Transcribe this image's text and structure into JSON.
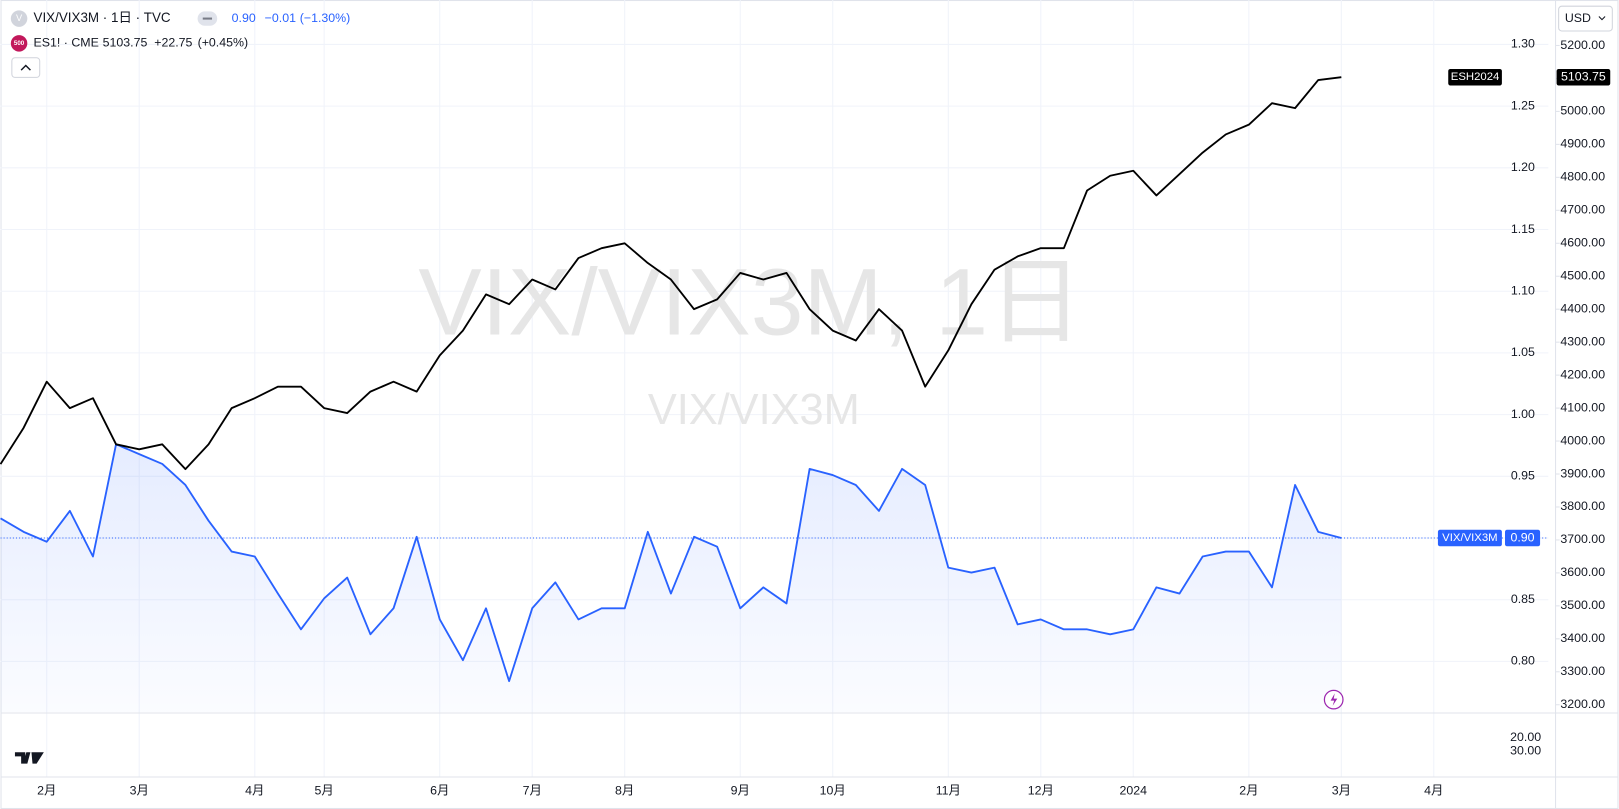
{
  "header": {
    "icon": "V",
    "symbol": "VIX/VIX3M · 1日 · TVC",
    "last": "0.90",
    "change": "−0.01",
    "change_pct": "(−1.30%)",
    "icon2": "500",
    "symbol2": "ES1! · CME",
    "last2": "5103.75",
    "change2": "+22.75",
    "change_pct2": "(+0.45%)",
    "currency": "USD",
    "watermark": "VIX/VIX3M, 1日",
    "watermark_sub": "VIX/VIX3M"
  },
  "chart_data": {
    "type": "line",
    "categories": [
      null,
      null,
      "2月",
      null,
      null,
      null,
      "3月",
      null,
      null,
      null,
      null,
      "4月",
      null,
      null,
      "5月",
      null,
      null,
      null,
      null,
      "6月",
      null,
      null,
      null,
      "7月",
      null,
      null,
      null,
      "8月",
      null,
      null,
      null,
      null,
      "9月",
      null,
      null,
      null,
      "10月",
      null,
      null,
      null,
      null,
      "11月",
      null,
      null,
      null,
      "12月",
      null,
      null,
      null,
      "2024",
      null,
      null,
      null,
      null,
      "2月",
      null,
      null,
      null,
      "3月",
      null,
      null,
      null,
      "4月"
    ],
    "series": [
      {
        "name": "VIX/VIX3M",
        "color": "#2962ff",
        "tag": "VIX/VIX3M",
        "last_label": "0.90",
        "values": [
          0.916,
          0.905,
          0.897,
          0.922,
          0.885,
          0.976,
          0.968,
          0.96,
          0.943,
          0.914,
          0.889,
          0.885,
          0.855,
          0.826,
          0.851,
          0.868,
          0.822,
          0.843,
          0.901,
          0.834,
          0.801,
          0.843,
          0.784,
          0.843,
          0.864,
          0.834,
          0.843,
          0.843,
          0.905,
          0.855,
          0.901,
          0.893,
          0.843,
          0.86,
          0.847,
          0.956,
          0.951,
          0.943,
          0.922,
          0.956,
          0.943,
          0.876,
          0.872,
          0.876,
          0.83,
          0.834,
          0.826,
          0.826,
          0.822,
          0.826,
          0.86,
          0.855,
          0.885,
          0.889,
          0.889,
          0.86,
          0.943,
          0.905,
          0.9,
          null,
          null,
          null,
          null
        ]
      },
      {
        "name": "ESH2024",
        "color": "#000000",
        "axis": "y2",
        "tag": "ESH2024",
        "values": [
          3930,
          4040,
          4180,
          4100,
          4130,
          3990,
          3975,
          3990,
          3915,
          3990,
          4100,
          4130,
          4165,
          4165,
          4100,
          4085,
          4150,
          4180,
          4150,
          4260,
          4335,
          4445,
          4415,
          4490,
          4460,
          4555,
          4585,
          4600,
          4540,
          4490,
          4400,
          4430,
          4510,
          4490,
          4510,
          4400,
          4335,
          4305,
          4400,
          4335,
          4165,
          4275,
          4415,
          4520,
          4560,
          4585,
          4585,
          4760,
          4805,
          4820,
          4745,
          4810,
          4875,
          4930,
          4960,
          5025,
          5010,
          5095,
          5103.75,
          null,
          null,
          null,
          null
        ]
      }
    ],
    "ylim": [
      0.759,
      1.336
    ],
    "yticks": [
      {
        "value": 0.8,
        "label": "0.80"
      },
      {
        "value": 0.85,
        "label": "0.85"
      },
      {
        "value": 0.9,
        "label": "0.90"
      },
      {
        "value": 0.95,
        "label": "0.95"
      },
      {
        "value": 1.0,
        "label": "1.00"
      },
      {
        "value": 1.05,
        "label": "1.05"
      },
      {
        "value": 1.1,
        "label": "1.10"
      },
      {
        "value": 1.15,
        "label": "1.15"
      },
      {
        "value": 1.2,
        "label": "1.20"
      },
      {
        "value": 1.25,
        "label": "1.25"
      },
      {
        "value": 1.3,
        "label": "1.30"
      }
    ],
    "y2lim": [
      3178,
      5338
    ],
    "y2ticks": [
      {
        "value": 3200,
        "label": "3200.00"
      },
      {
        "value": 3300,
        "label": "3300.00"
      },
      {
        "value": 3400,
        "label": "3400.00"
      },
      {
        "value": 3500,
        "label": "3500.00"
      },
      {
        "value": 3600,
        "label": "3600.00"
      },
      {
        "value": 3700,
        "label": "3700.00"
      },
      {
        "value": 3800,
        "label": "3800.00"
      },
      {
        "value": 3900,
        "label": "3900.00"
      },
      {
        "value": 4000,
        "label": "4000.00"
      },
      {
        "value": 4100,
        "label": "4100.00"
      },
      {
        "value": 4200,
        "label": "4200.00"
      },
      {
        "value": 4300,
        "label": "4300.00"
      },
      {
        "value": 4400,
        "label": "4400.00"
      },
      {
        "value": 4500,
        "label": "4500.00"
      },
      {
        "value": 4600,
        "label": "4600.00"
      },
      {
        "value": 4700,
        "label": "4700.00"
      },
      {
        "value": 4800,
        "label": "4800.00"
      },
      {
        "value": 4900,
        "label": "4900.00"
      },
      {
        "value": 5000,
        "label": "5000.00"
      },
      {
        "value": 5100,
        "label": "5100.00"
      },
      {
        "value": 5200,
        "label": "5200.00"
      }
    ],
    "y3lim": [
      48.5,
      2.3
    ],
    "y3ticks": [
      {
        "value": 20,
        "label": "20.00"
      },
      {
        "value": 30,
        "label": "30.00"
      }
    ],
    "grid": true
  }
}
